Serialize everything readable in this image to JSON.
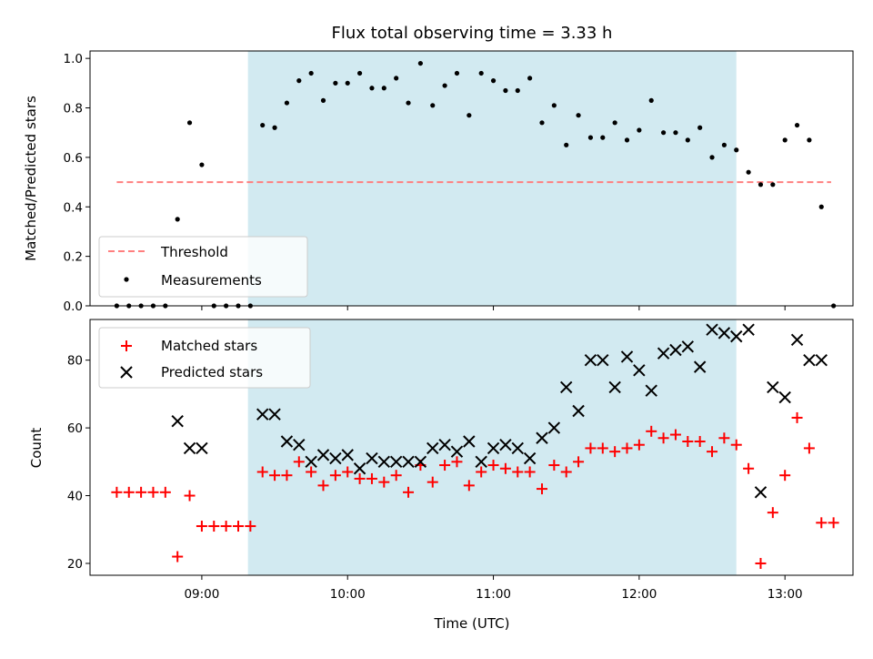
{
  "chart_data": [
    {
      "type": "scatter",
      "title": "Flux total observing time = 3.33 h",
      "xlabel": "",
      "ylabel": "Matched/Predicted stars",
      "ylim": [
        0,
        1.03
      ],
      "xlim": [
        "08:14",
        "13:28"
      ],
      "yticks": [
        "0.0",
        "0.2",
        "0.4",
        "0.6",
        "0.8",
        "1.0"
      ],
      "highlight_span": [
        "09:19",
        "12:40"
      ],
      "highlight_color": "#add8e6",
      "grid": false,
      "legend_position": "lower-left",
      "threshold": {
        "name": "Threshold",
        "value": 0.5,
        "x_range": [
          "08:25",
          "13:19"
        ],
        "color": "#ff7f7f",
        "style": "dashed"
      },
      "series": [
        {
          "name": "Measurements",
          "color": "#000000",
          "marker": "dot",
          "points": [
            [
              "08:25",
              0.0
            ],
            [
              "08:30",
              0.0
            ],
            [
              "08:35",
              0.0
            ],
            [
              "08:40",
              0.0
            ],
            [
              "08:45",
              0.0
            ],
            [
              "08:50",
              0.35
            ],
            [
              "08:55",
              0.74
            ],
            [
              "09:00",
              0.57
            ],
            [
              "09:05",
              0.0
            ],
            [
              "09:10",
              0.0
            ],
            [
              "09:15",
              0.0
            ],
            [
              "09:20",
              0.0
            ],
            [
              "09:25",
              0.73
            ],
            [
              "09:30",
              0.72
            ],
            [
              "09:35",
              0.82
            ],
            [
              "09:40",
              0.91
            ],
            [
              "09:45",
              0.94
            ],
            [
              "09:50",
              0.83
            ],
            [
              "09:55",
              0.9
            ],
            [
              "10:00",
              0.9
            ],
            [
              "10:05",
              0.94
            ],
            [
              "10:10",
              0.88
            ],
            [
              "10:15",
              0.88
            ],
            [
              "10:20",
              0.92
            ],
            [
              "10:25",
              0.82
            ],
            [
              "10:30",
              0.98
            ],
            [
              "10:35",
              0.81
            ],
            [
              "10:40",
              0.89
            ],
            [
              "10:45",
              0.94
            ],
            [
              "10:50",
              0.77
            ],
            [
              "10:55",
              0.94
            ],
            [
              "11:00",
              0.91
            ],
            [
              "11:05",
              0.87
            ],
            [
              "11:10",
              0.87
            ],
            [
              "11:15",
              0.92
            ],
            [
              "11:20",
              0.74
            ],
            [
              "11:25",
              0.81
            ],
            [
              "11:30",
              0.65
            ],
            [
              "11:35",
              0.77
            ],
            [
              "11:40",
              0.68
            ],
            [
              "11:45",
              0.68
            ],
            [
              "11:50",
              0.74
            ],
            [
              "11:55",
              0.67
            ],
            [
              "12:00",
              0.71
            ],
            [
              "12:05",
              0.83
            ],
            [
              "12:10",
              0.7
            ],
            [
              "12:15",
              0.7
            ],
            [
              "12:20",
              0.67
            ],
            [
              "12:25",
              0.72
            ],
            [
              "12:30",
              0.6
            ],
            [
              "12:35",
              0.65
            ],
            [
              "12:40",
              0.63
            ],
            [
              "12:45",
              0.54
            ],
            [
              "12:50",
              0.49
            ],
            [
              "12:55",
              0.49
            ],
            [
              "13:00",
              0.67
            ],
            [
              "13:05",
              0.73
            ],
            [
              "13:10",
              0.67
            ],
            [
              "13:15",
              0.4
            ],
            [
              "13:20",
              0.0
            ]
          ]
        }
      ]
    },
    {
      "type": "scatter",
      "title": "",
      "xlabel": "Time (UTC)",
      "ylabel": "Count",
      "ylim": [
        16.5,
        92
      ],
      "xlim": [
        "08:14",
        "13:28"
      ],
      "yticks": [
        "20",
        "40",
        "60",
        "80"
      ],
      "xticks": [
        "09:00",
        "10:00",
        "11:00",
        "12:00",
        "13:00"
      ],
      "highlight_span": [
        "09:19",
        "12:40"
      ],
      "highlight_color": "#add8e6",
      "grid": false,
      "legend_position": "upper-left",
      "series": [
        {
          "name": "Matched stars",
          "color": "#ff0000",
          "marker": "plus",
          "points": [
            [
              "08:25",
              41
            ],
            [
              "08:30",
              41
            ],
            [
              "08:35",
              41
            ],
            [
              "08:40",
              41
            ],
            [
              "08:45",
              41
            ],
            [
              "08:50",
              22
            ],
            [
              "08:55",
              40
            ],
            [
              "09:00",
              31
            ],
            [
              "09:05",
              31
            ],
            [
              "09:10",
              31
            ],
            [
              "09:15",
              31
            ],
            [
              "09:20",
              31
            ],
            [
              "09:25",
              47
            ],
            [
              "09:30",
              46
            ],
            [
              "09:35",
              46
            ],
            [
              "09:40",
              50
            ],
            [
              "09:45",
              47
            ],
            [
              "09:50",
              43
            ],
            [
              "09:55",
              46
            ],
            [
              "10:00",
              47
            ],
            [
              "10:05",
              45
            ],
            [
              "10:10",
              45
            ],
            [
              "10:15",
              44
            ],
            [
              "10:20",
              46
            ],
            [
              "10:25",
              41
            ],
            [
              "10:30",
              49
            ],
            [
              "10:35",
              44
            ],
            [
              "10:40",
              49
            ],
            [
              "10:45",
              50
            ],
            [
              "10:50",
              43
            ],
            [
              "10:55",
              47
            ],
            [
              "11:00",
              49
            ],
            [
              "11:05",
              48
            ],
            [
              "11:10",
              47
            ],
            [
              "11:15",
              47
            ],
            [
              "11:20",
              42
            ],
            [
              "11:25",
              49
            ],
            [
              "11:30",
              47
            ],
            [
              "11:35",
              50
            ],
            [
              "11:40",
              54
            ],
            [
              "11:45",
              54
            ],
            [
              "11:50",
              53
            ],
            [
              "11:55",
              54
            ],
            [
              "12:00",
              55
            ],
            [
              "12:05",
              59
            ],
            [
              "12:10",
              57
            ],
            [
              "12:15",
              58
            ],
            [
              "12:20",
              56
            ],
            [
              "12:25",
              56
            ],
            [
              "12:30",
              53
            ],
            [
              "12:35",
              57
            ],
            [
              "12:40",
              55
            ],
            [
              "12:45",
              48
            ],
            [
              "12:50",
              20
            ],
            [
              "12:55",
              35
            ],
            [
              "13:00",
              46
            ],
            [
              "13:05",
              63
            ],
            [
              "13:10",
              54
            ],
            [
              "13:15",
              32
            ],
            [
              "13:20",
              32
            ]
          ]
        },
        {
          "name": "Predicted stars",
          "color": "#000000",
          "marker": "x",
          "points": [
            [
              "08:50",
              62
            ],
            [
              "08:55",
              54
            ],
            [
              "09:00",
              54
            ],
            [
              "09:25",
              64
            ],
            [
              "09:30",
              64
            ],
            [
              "09:35",
              56
            ],
            [
              "09:40",
              55
            ],
            [
              "09:45",
              50
            ],
            [
              "09:50",
              52
            ],
            [
              "09:55",
              51
            ],
            [
              "10:00",
              52
            ],
            [
              "10:05",
              48
            ],
            [
              "10:10",
              51
            ],
            [
              "10:15",
              50
            ],
            [
              "10:20",
              50
            ],
            [
              "10:25",
              50
            ],
            [
              "10:30",
              50
            ],
            [
              "10:35",
              54
            ],
            [
              "10:40",
              55
            ],
            [
              "10:45",
              53
            ],
            [
              "10:50",
              56
            ],
            [
              "10:55",
              50
            ],
            [
              "11:00",
              54
            ],
            [
              "11:05",
              55
            ],
            [
              "11:10",
              54
            ],
            [
              "11:15",
              51
            ],
            [
              "11:20",
              57
            ],
            [
              "11:25",
              60
            ],
            [
              "11:30",
              72
            ],
            [
              "11:35",
              65
            ],
            [
              "11:40",
              80
            ],
            [
              "11:45",
              80
            ],
            [
              "11:50",
              72
            ],
            [
              "11:55",
              81
            ],
            [
              "12:00",
              77
            ],
            [
              "12:05",
              71
            ],
            [
              "12:10",
              82
            ],
            [
              "12:15",
              83
            ],
            [
              "12:20",
              84
            ],
            [
              "12:25",
              78
            ],
            [
              "12:30",
              89
            ],
            [
              "12:35",
              88
            ],
            [
              "12:40",
              87
            ],
            [
              "12:45",
              89
            ],
            [
              "12:50",
              41
            ],
            [
              "12:55",
              72
            ],
            [
              "13:00",
              69
            ],
            [
              "13:05",
              86
            ],
            [
              "13:10",
              80
            ],
            [
              "13:15",
              80
            ]
          ]
        }
      ]
    }
  ]
}
